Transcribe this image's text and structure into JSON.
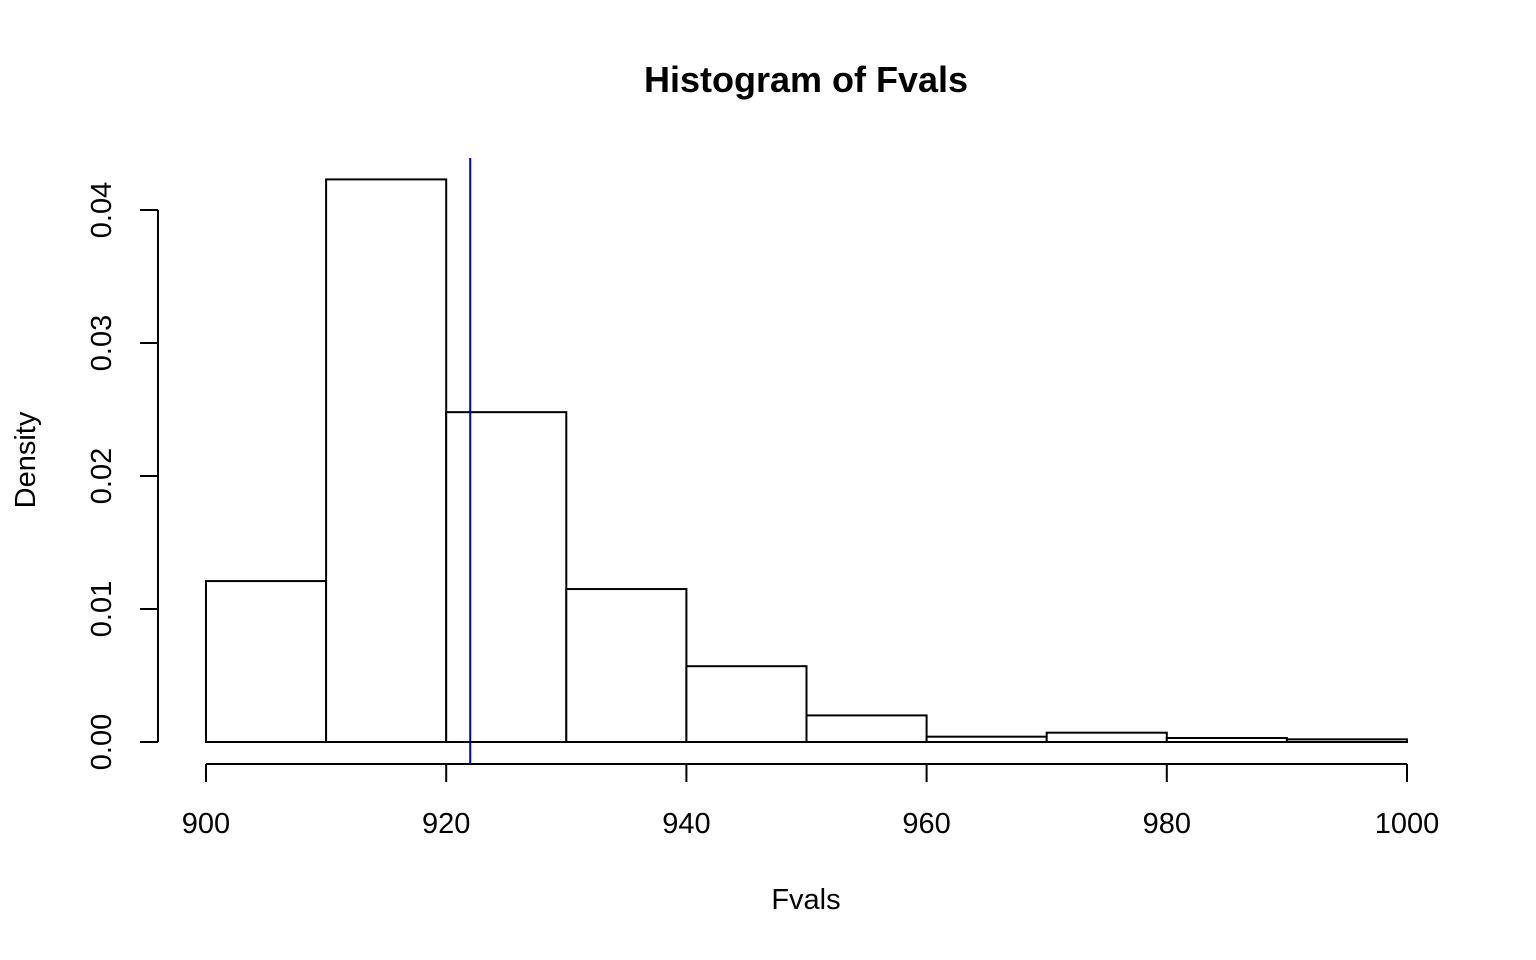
{
  "chart_data": {
    "type": "bar",
    "title": "Histogram of Fvals",
    "xlabel": "Fvals",
    "ylabel": "Density",
    "xlim": [
      900,
      1000
    ],
    "ylim": [
      0,
      0.04
    ],
    "bins": [
      {
        "x0": 900,
        "x1": 910,
        "density": 0.0121
      },
      {
        "x0": 910,
        "x1": 920,
        "density": 0.0423
      },
      {
        "x0": 920,
        "x1": 930,
        "density": 0.0248
      },
      {
        "x0": 930,
        "x1": 940,
        "density": 0.0115
      },
      {
        "x0": 940,
        "x1": 950,
        "density": 0.0057
      },
      {
        "x0": 950,
        "x1": 960,
        "density": 0.002
      },
      {
        "x0": 960,
        "x1": 970,
        "density": 0.0004
      },
      {
        "x0": 970,
        "x1": 980,
        "density": 0.0007
      },
      {
        "x0": 980,
        "x1": 990,
        "density": 0.0003
      },
      {
        "x0": 990,
        "x1": 1000,
        "density": 0.0002
      }
    ],
    "x_ticks": [
      900,
      920,
      940,
      960,
      980,
      1000
    ],
    "x_tick_labels": [
      "900",
      "920",
      "940",
      "960",
      "980",
      "1000"
    ],
    "y_ticks": [
      0,
      0.01,
      0.02,
      0.03,
      0.04
    ],
    "y_tick_labels": [
      "0.00",
      "0.01",
      "0.02",
      "0.03",
      "0.04"
    ],
    "vline": {
      "x": 922,
      "color": "#0000cc"
    },
    "grid": false,
    "legend": "none"
  }
}
